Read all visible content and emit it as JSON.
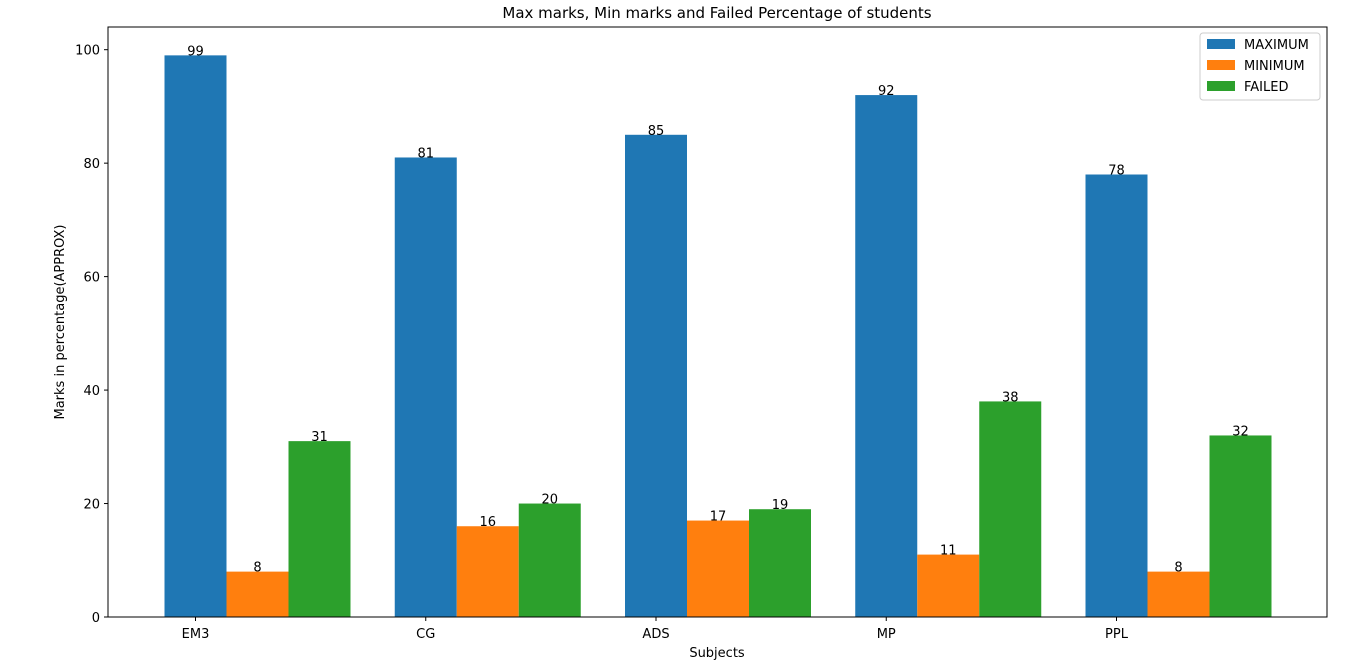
{
  "chart_data": {
    "type": "bar",
    "title": "Max marks, Min marks and Failed Percentage of students",
    "xlabel": "Subjects",
    "ylabel": "Marks in percentage(APPROX)",
    "categories": [
      "EM3",
      "CG",
      "ADS",
      "MP",
      "PPL"
    ],
    "ylim": [
      0,
      104
    ],
    "yticks": [
      "0",
      "20",
      "40",
      "60",
      "80",
      "100"
    ],
    "legend_position": "top-right",
    "grid": false,
    "series": [
      {
        "name": "MAXIMUM",
        "color": "#1f77b4",
        "values": [
          99,
          81,
          85,
          92,
          78
        ]
      },
      {
        "name": "MINIMUM",
        "color": "#ff7f0e",
        "values": [
          8,
          16,
          17,
          11,
          8
        ]
      },
      {
        "name": "FAILED",
        "color": "#2ca02c",
        "values": [
          31,
          20,
          19,
          38,
          32
        ]
      }
    ]
  }
}
